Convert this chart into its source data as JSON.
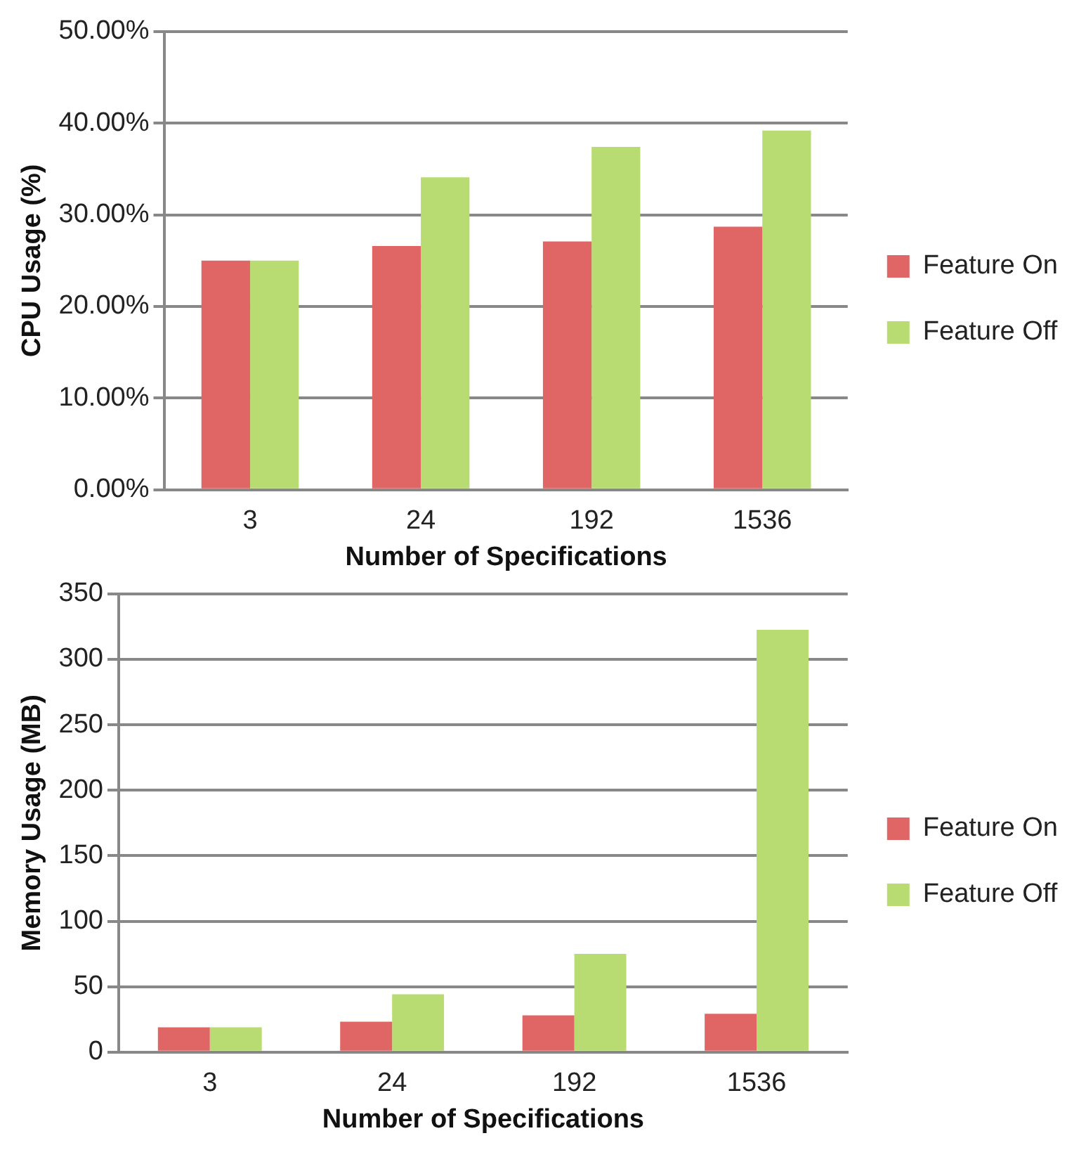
{
  "chart_data": [
    {
      "type": "bar",
      "categories": [
        "3",
        "24",
        "192",
        "1536"
      ],
      "xlabel": "Number of Specifications",
      "ylabel": "CPU Usage (%)",
      "series": [
        {
          "name": "Feature On",
          "color": "#e06666",
          "values": [
            25.0,
            26.6,
            27.1,
            28.7
          ]
        },
        {
          "name": "Feature Off",
          "color": "#b9dc72",
          "values": [
            25.0,
            34.1,
            37.4,
            39.2
          ]
        }
      ],
      "ylim": [
        0,
        50
      ],
      "yticks": [
        {
          "value": 0,
          "label": "0.00%"
        },
        {
          "value": 10,
          "label": "10.00%"
        },
        {
          "value": 20,
          "label": "20.00%"
        },
        {
          "value": 30,
          "label": "30.00%"
        },
        {
          "value": 40,
          "label": "40.00%"
        },
        {
          "value": 50,
          "label": "50.00%"
        }
      ],
      "grid": "y",
      "legend": "right"
    },
    {
      "type": "bar",
      "categories": [
        "3",
        "24",
        "192",
        "1536"
      ],
      "xlabel": "Number of Specifications",
      "ylabel": "Memory Usage (MB)",
      "series": [
        {
          "name": "Feature On",
          "color": "#e06666",
          "values": [
            19,
            23.3,
            28.1,
            29.3
          ]
        },
        {
          "name": "Feature Off",
          "color": "#b9dc72",
          "values": [
            19,
            44.2,
            75.1,
            322.5
          ]
        }
      ],
      "ylim": [
        0,
        350
      ],
      "yticks": [
        0,
        50,
        100,
        150,
        200,
        250,
        300,
        350
      ],
      "grid": "y",
      "legend": "right"
    }
  ]
}
